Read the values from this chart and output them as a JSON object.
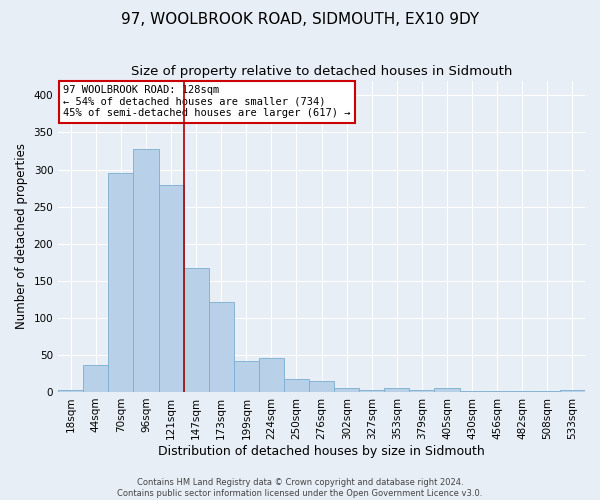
{
  "title": "97, WOOLBROOK ROAD, SIDMOUTH, EX10 9DY",
  "subtitle": "Size of property relative to detached houses in Sidmouth",
  "xlabel": "Distribution of detached houses by size in Sidmouth",
  "ylabel": "Number of detached properties",
  "categories": [
    "18sqm",
    "44sqm",
    "70sqm",
    "96sqm",
    "121sqm",
    "147sqm",
    "173sqm",
    "199sqm",
    "224sqm",
    "250sqm",
    "276sqm",
    "302sqm",
    "327sqm",
    "353sqm",
    "379sqm",
    "405sqm",
    "430sqm",
    "456sqm",
    "482sqm",
    "508sqm",
    "533sqm"
  ],
  "values": [
    3,
    37,
    295,
    328,
    279,
    167,
    122,
    42,
    46,
    17,
    15,
    5,
    2,
    6,
    2,
    6,
    1,
    1,
    1,
    1,
    2
  ],
  "bar_color": "#b8d0e8",
  "bar_edge_color": "#7aaed0",
  "vline_x": 4.5,
  "vline_color": "#aa0000",
  "ylim": [
    0,
    420
  ],
  "yticks": [
    0,
    50,
    100,
    150,
    200,
    250,
    300,
    350,
    400
  ],
  "annotation_title": "97 WOOLBROOK ROAD: 128sqm",
  "annotation_line1": "← 54% of detached houses are smaller (734)",
  "annotation_line2": "45% of semi-detached houses are larger (617) →",
  "annotation_box_facecolor": "#ffffff",
  "annotation_box_edgecolor": "#cc0000",
  "footer_line1": "Contains HM Land Registry data © Crown copyright and database right 2024.",
  "footer_line2": "Contains public sector information licensed under the Open Government Licence v3.0.",
  "background_color": "#e8eef5",
  "grid_color": "#ffffff",
  "title_fontsize": 11,
  "subtitle_fontsize": 9.5,
  "xlabel_fontsize": 9,
  "ylabel_fontsize": 8.5,
  "tick_fontsize": 7.5,
  "annot_fontsize": 7.5,
  "footer_fontsize": 6
}
